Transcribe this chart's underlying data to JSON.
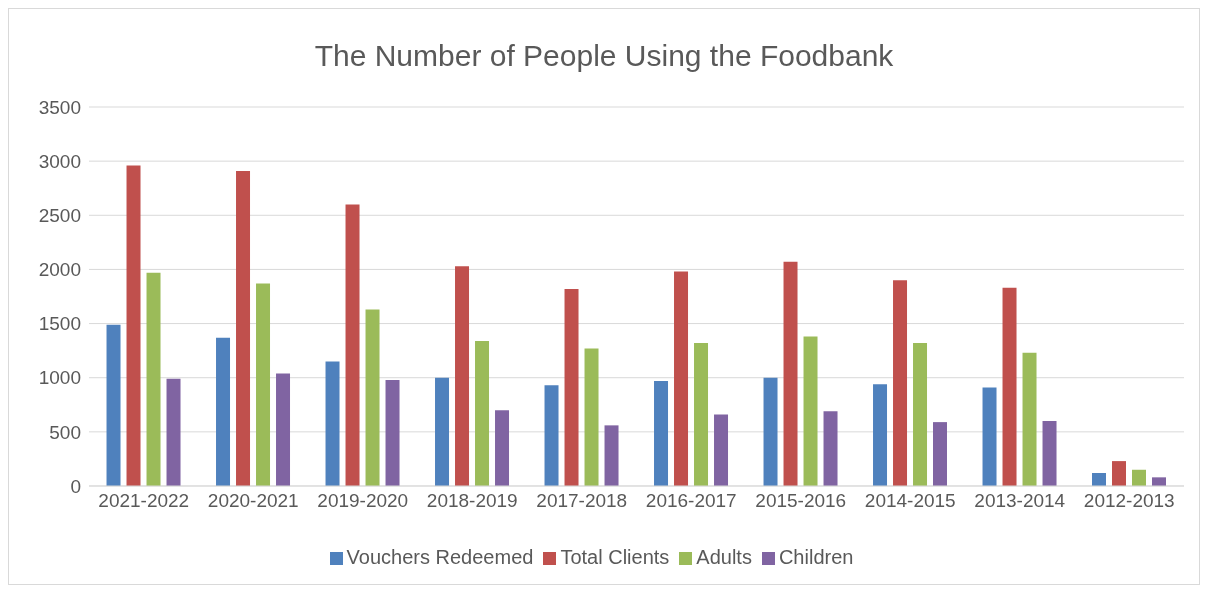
{
  "chart_data": {
    "type": "bar",
    "title": "The Number of People Using the Foodbank",
    "categories": [
      "2021-2022",
      "2020-2021",
      "2019-2020",
      "2018-2019",
      "2017-2018",
      "2016-2017",
      "2015-2016",
      "2014-2015",
      "2013-2014",
      "2012-2013"
    ],
    "series": [
      {
        "name": "Vouchers Redeemed",
        "color": "#4f81bd",
        "values": [
          1490,
          1370,
          1150,
          1000,
          930,
          970,
          1000,
          940,
          910,
          120
        ]
      },
      {
        "name": "Total Clients",
        "color": "#c0504d",
        "values": [
          2960,
          2910,
          2600,
          2030,
          1820,
          1980,
          2070,
          1900,
          1830,
          230
        ]
      },
      {
        "name": "Adults",
        "color": "#9bbb59",
        "values": [
          1970,
          1870,
          1630,
          1340,
          1270,
          1320,
          1380,
          1320,
          1230,
          150
        ]
      },
      {
        "name": "Children",
        "color": "#8064a2",
        "values": [
          990,
          1040,
          980,
          700,
          560,
          660,
          690,
          590,
          600,
          80
        ]
      }
    ],
    "ylim": [
      0,
      3500
    ],
    "yticks": [
      0,
      500,
      1000,
      1500,
      2000,
      2500,
      3000,
      3500
    ],
    "grid": "y",
    "legend": "bottom"
  }
}
